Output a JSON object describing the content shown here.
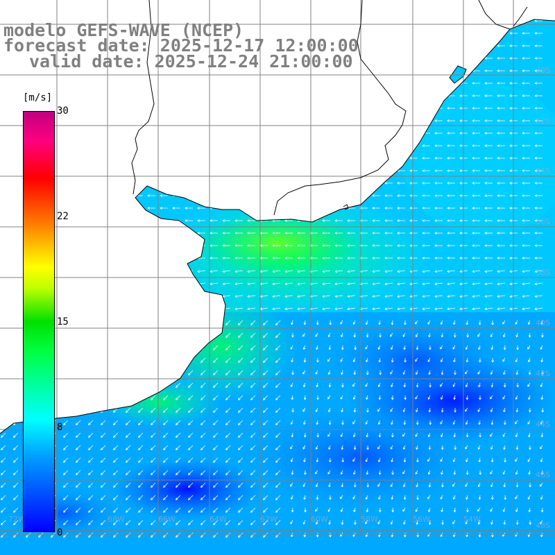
{
  "title": {
    "line1": "modelo GEFS-WAVE (NCEP)",
    "line2": "forecast date: 2025-12-17 12:00:00",
    "line3": "valid date: 2025-12-24 21:00:00"
  },
  "colorbar": {
    "unit": "[m/s]",
    "ticks": [
      "30",
      "22",
      "15",
      "8",
      "0"
    ],
    "range": [
      0,
      30
    ],
    "colors": [
      "#0000ff",
      "#00a0ff",
      "#00ffff",
      "#00ff40",
      "#00e000",
      "#c0ff00",
      "#ffff00",
      "#ff8000",
      "#ff0000",
      "#ff0080",
      "#c00080"
    ]
  },
  "map": {
    "variable": "wind speed with wind direction arrows",
    "land_color": "#ffffff",
    "grid_color": "#808080",
    "coast_color": "#000000"
  }
}
